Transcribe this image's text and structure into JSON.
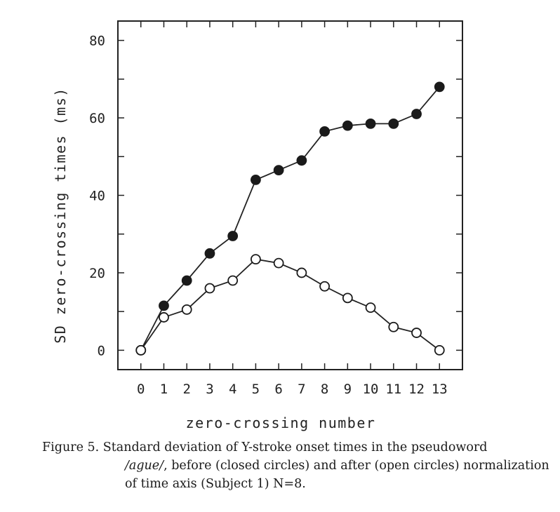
{
  "chart_data": {
    "type": "line",
    "xlabel": "zero-crossing number",
    "ylabel": "SD zero-crossing times (ms)",
    "x": [
      0,
      1,
      2,
      3,
      4,
      5,
      6,
      7,
      8,
      9,
      10,
      11,
      12,
      13
    ],
    "xticks": [
      "0",
      "1",
      "2",
      "3",
      "4",
      "5",
      "6",
      "7",
      "8",
      "9",
      "10",
      "11",
      "12",
      "13"
    ],
    "yticks": [
      0,
      20,
      40,
      60,
      80
    ],
    "xlim": [
      -1,
      14
    ],
    "ylim": [
      -5,
      85
    ],
    "grid": false,
    "legend": "none",
    "series": [
      {
        "marker": "closed-circle",
        "values": [
          0,
          11.5,
          18,
          25,
          29.5,
          44,
          46.5,
          49,
          56.5,
          58,
          58.5,
          58.5,
          61,
          68
        ]
      },
      {
        "marker": "open-circle",
        "values": [
          0,
          8.5,
          10.5,
          16,
          18,
          23.5,
          22.5,
          20,
          16.5,
          13.5,
          11,
          6,
          4.5,
          0
        ]
      }
    ]
  },
  "caption": {
    "label": "Figure 5.",
    "line1": "Standard deviation of Y-stroke onset times in the pseudoword",
    "word": "/ague/",
    "line2": ", before (closed circles) and after (open circles) normalization",
    "line3": "of time axis (Subject 1) N=8."
  }
}
